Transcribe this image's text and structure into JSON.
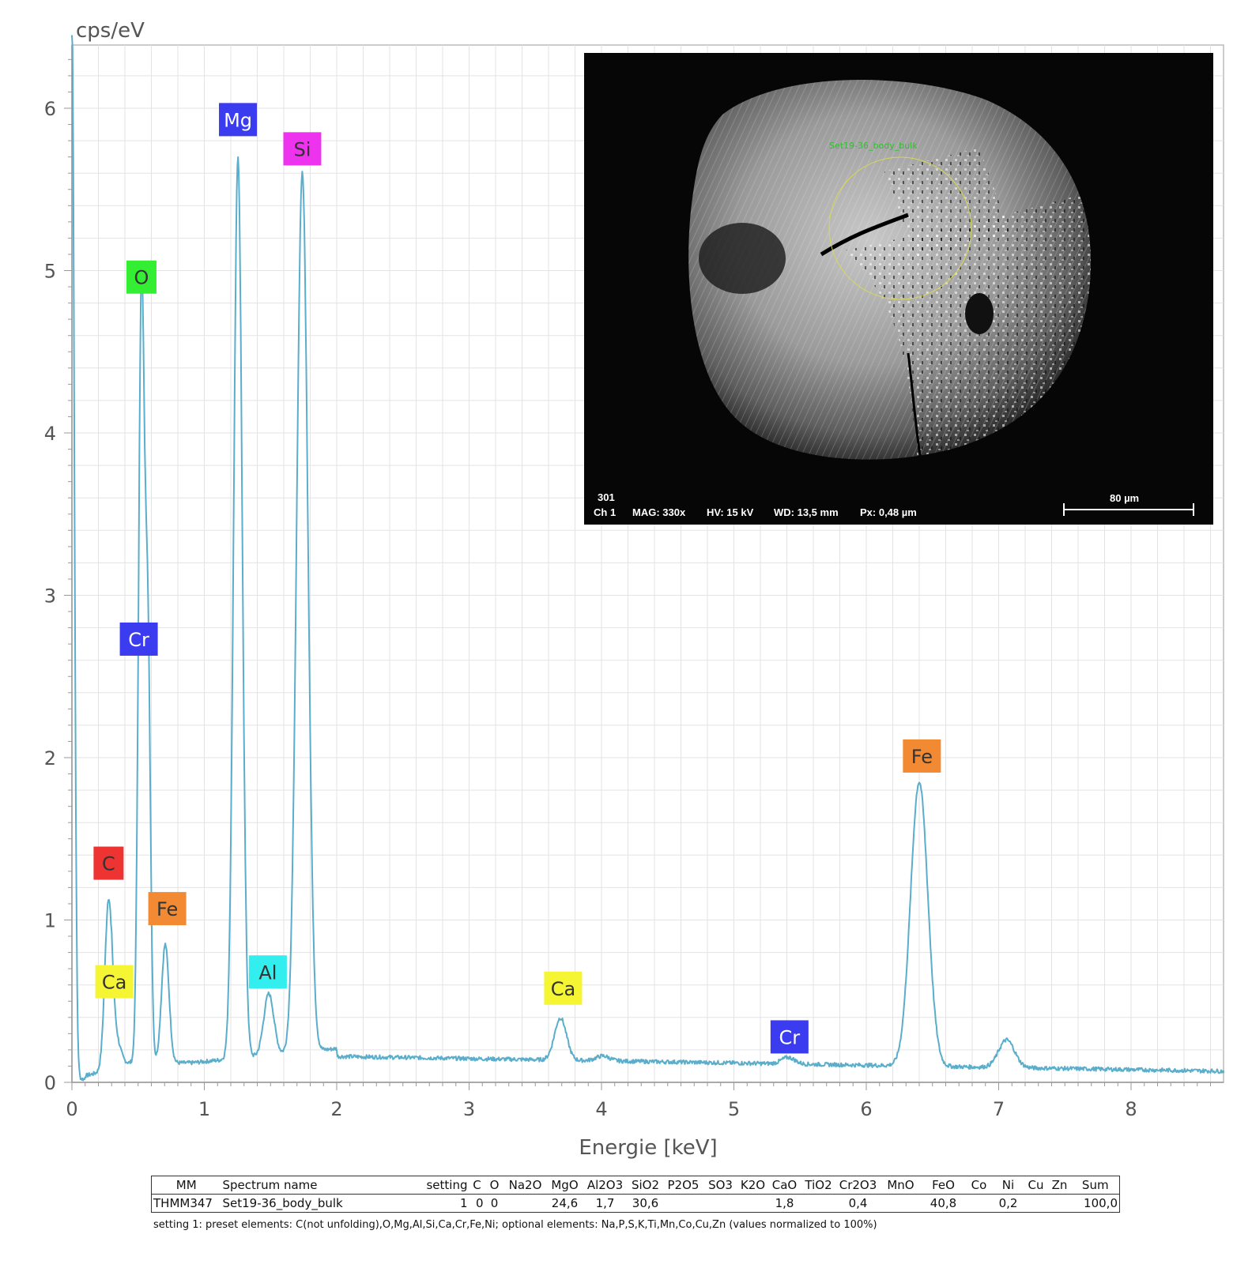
{
  "chart_data": {
    "type": "line",
    "title": "",
    "xlabel": "Energie [keV]",
    "ylabel": "cps/eV",
    "xlim": [
      0,
      8.7
    ],
    "ylim": [
      0,
      6.4
    ],
    "xticks": [
      0,
      1,
      2,
      3,
      4,
      5,
      6,
      7,
      8
    ],
    "yticks": [
      0,
      1,
      2,
      3,
      4,
      5,
      6
    ],
    "grid": true,
    "series_color": "#5aaecb",
    "baseline": 0.16,
    "peaks": [
      {
        "x": 0.0,
        "y": 6.6,
        "w": 0.018
      },
      {
        "x": 0.277,
        "y": 1.05,
        "w": 0.028
      },
      {
        "x": 0.341,
        "y": 0.12,
        "w": 0.03
      },
      {
        "x": 0.525,
        "y": 4.75,
        "w": 0.022
      },
      {
        "x": 0.573,
        "y": 2.55,
        "w": 0.02
      },
      {
        "x": 0.705,
        "y": 0.73,
        "w": 0.028
      },
      {
        "x": 1.254,
        "y": 5.55,
        "w": 0.032
      },
      {
        "x": 1.487,
        "y": 0.38,
        "w": 0.038
      },
      {
        "x": 1.74,
        "y": 5.42,
        "w": 0.042
      },
      {
        "x": 3.69,
        "y": 0.26,
        "w": 0.045
      },
      {
        "x": 4.01,
        "y": 0.03,
        "w": 0.05
      },
      {
        "x": 5.41,
        "y": 0.04,
        "w": 0.05
      },
      {
        "x": 6.4,
        "y": 1.75,
        "w": 0.065
      },
      {
        "x": 7.06,
        "y": 0.17,
        "w": 0.06
      }
    ],
    "peak_labels": [
      {
        "element": "Mg",
        "x": 1.254,
        "y": 5.93,
        "color": "#3b3bf0",
        "text_color": "#ffffff"
      },
      {
        "element": "Si",
        "x": 1.74,
        "y": 5.75,
        "color": "#ee33ee",
        "text_color": "#333333"
      },
      {
        "element": "O",
        "x": 0.525,
        "y": 4.96,
        "color": "#33ee33",
        "text_color": "#333333"
      },
      {
        "element": "Cr",
        "x": 0.505,
        "y": 2.73,
        "color": "#3b3bf0",
        "text_color": "#ffffff"
      },
      {
        "element": "C",
        "x": 0.277,
        "y": 1.35,
        "color": "#ee3333",
        "text_color": "#333333"
      },
      {
        "element": "Fe",
        "x": 0.72,
        "y": 1.07,
        "color": "#f28a33",
        "text_color": "#333333"
      },
      {
        "element": "Ca",
        "x": 0.32,
        "y": 0.62,
        "color": "#f5f533",
        "text_color": "#333333"
      },
      {
        "element": "Al",
        "x": 1.48,
        "y": 0.68,
        "color": "#33eeee",
        "text_color": "#333333"
      },
      {
        "element": "Ca",
        "x": 3.71,
        "y": 0.58,
        "color": "#f5f533",
        "text_color": "#333333"
      },
      {
        "element": "Cr",
        "x": 5.42,
        "y": 0.28,
        "color": "#3b3bf0",
        "text_color": "#ffffff"
      },
      {
        "element": "Fe",
        "x": 6.42,
        "y": 2.01,
        "color": "#f28a33",
        "text_color": "#333333"
      }
    ]
  },
  "sem_image": {
    "image_number": "301",
    "channel": "Ch 1",
    "mag": "MAG: 330x",
    "hv": "HV: 15 kV",
    "wd": "WD: 13,5 mm",
    "px": "Px: 0,48 µm",
    "scale_bar": "80 µm",
    "roi_label": "Set19-36_body_bulk"
  },
  "table": {
    "headers": [
      "MM",
      "Spectrum name",
      "setting",
      "C",
      "O",
      "Na2O",
      "MgO",
      "Al2O3",
      "SiO2",
      "P2O5",
      "SO3",
      "K2O",
      "CaO",
      "TiO2",
      "Cr2O3",
      "MnO",
      "FeO",
      "Co",
      "Ni",
      "Cu",
      "Zn",
      "Sum"
    ],
    "row": [
      "THMM347",
      "Set19-36_body_bulk",
      "1",
      "0",
      "0",
      "",
      "24,6",
      "1,7",
      "30,6",
      "",
      "",
      "",
      "1,8",
      "",
      "0,4",
      "",
      "40,8",
      "",
      "0,2",
      "",
      "",
      "100,0"
    ]
  },
  "footnote": "setting 1: preset elements: C(not unfolding),O,Mg,Al,Si,Ca,Cr,Fe,Ni; optional elements: Na,P,S,K,Ti,Mn,Co,Cu,Zn (values normalized to 100%)"
}
